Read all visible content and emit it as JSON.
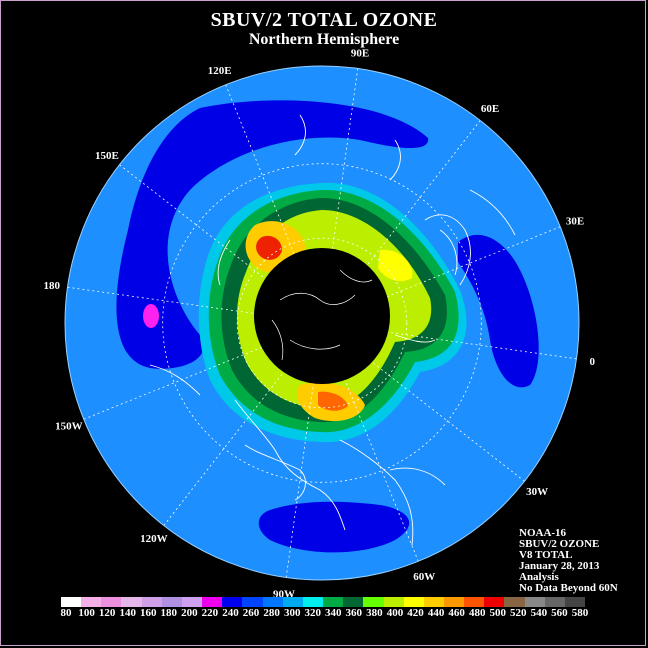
{
  "title": "SBUV/2 TOTAL OZONE",
  "subtitle": "Northern Hemisphere",
  "longitude_labels": [
    {
      "text": "90E",
      "lon": 90
    },
    {
      "text": "60E",
      "lon": 60
    },
    {
      "text": "30E",
      "lon": 30
    },
    {
      "text": "0",
      "lon": 0
    },
    {
      "text": "30W",
      "lon": -30
    },
    {
      "text": "60W",
      "lon": -60
    },
    {
      "text": "90W",
      "lon": -90
    },
    {
      "text": "120W",
      "lon": -120
    },
    {
      "text": "150W",
      "lon": -150
    },
    {
      "text": "180",
      "lon": 180
    },
    {
      "text": "150E",
      "lon": 150
    },
    {
      "text": "120E",
      "lon": 120
    }
  ],
  "info": {
    "satellite": "NOAA-16",
    "instrument": "SBUV/2 OZONE",
    "version": "V8 TOTAL",
    "date": "January 28, 2013",
    "product": "Analysis",
    "note": "No Data Beyond 60N"
  },
  "colorbar": {
    "labels": [
      "80",
      "100",
      "120",
      "140",
      "160",
      "180",
      "200",
      "220",
      "240",
      "260",
      "280",
      "300",
      "320",
      "340",
      "360",
      "380",
      "400",
      "420",
      "440",
      "460",
      "480",
      "500",
      "520",
      "540",
      "560",
      "580"
    ],
    "colors": [
      "#ffffff",
      "#f5b0e8",
      "#ee90e0",
      "#e6b5ea",
      "#cfa0e8",
      "#b090e0",
      "#d0a0f0",
      "#ee00ee",
      "#0000ee",
      "#0044ff",
      "#0077ff",
      "#00aaee",
      "#00eeee",
      "#00aa44",
      "#006633",
      "#66ff00",
      "#bbee00",
      "#ffff00",
      "#ffcc00",
      "#ff9900",
      "#ff5500",
      "#ee0000",
      "#886644",
      "#888888",
      "#666666",
      "#444444"
    ]
  },
  "colors": {
    "background": "#000000",
    "ocean_field": "#1e8fff",
    "low_band": "#0000e6",
    "minimum": "#ff22ee",
    "no_data": "#000000",
    "coastline": "#ffffff"
  }
}
